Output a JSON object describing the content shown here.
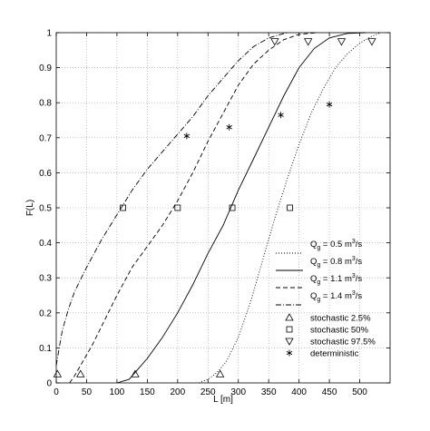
{
  "chart_data": {
    "type": "line",
    "xlabel": "L [m]",
    "ylabel": "F(L)",
    "xlim": [
      0,
      550
    ],
    "ylim": [
      0,
      1
    ],
    "xticks": [
      0,
      50,
      100,
      150,
      200,
      250,
      300,
      350,
      400,
      450,
      500
    ],
    "yticks": [
      0,
      0.1,
      0.2,
      0.3,
      0.4,
      0.5,
      0.6,
      0.7,
      0.8,
      0.9,
      1
    ],
    "grid": true,
    "legend_position": "bottom-right",
    "colors": {
      "lines": "#000000",
      "grid": "#9a9a9a",
      "background": "#ffffff"
    },
    "series": [
      {
        "name": "Q_g = 0.5 m³/s",
        "legend": {
          "base": "Q",
          "sub": "g",
          "mid": " = 0.5 m",
          "sup": "3",
          "tail": "/s"
        },
        "style": "dotted",
        "x": [
          235,
          250,
          265,
          280,
          300,
          320,
          340,
          360,
          380,
          400,
          420,
          440,
          460,
          480,
          500,
          520,
          535
        ],
        "y": [
          0,
          0.01,
          0.03,
          0.06,
          0.13,
          0.23,
          0.35,
          0.47,
          0.58,
          0.68,
          0.77,
          0.84,
          0.9,
          0.94,
          0.97,
          0.99,
          1
        ]
      },
      {
        "name": "Q_g = 0.8 m³/s",
        "legend": {
          "base": "Q",
          "sub": "g",
          "mid": " = 0.8 m",
          "sup": "3",
          "tail": "/s"
        },
        "style": "solid",
        "x": [
          100,
          110,
          120,
          130,
          150,
          175,
          200,
          225,
          250,
          275,
          300,
          325,
          350,
          375,
          400,
          425,
          450,
          480,
          510
        ],
        "y": [
          0,
          0.005,
          0.01,
          0.03,
          0.07,
          0.13,
          0.2,
          0.28,
          0.37,
          0.45,
          0.55,
          0.64,
          0.73,
          0.82,
          0.9,
          0.955,
          0.985,
          0.998,
          1
        ]
      },
      {
        "name": "Q_g = 1.1 m³/s",
        "legend": {
          "base": "Q",
          "sub": "g",
          "mid": " = 1.1 m",
          "sup": "3",
          "tail": "/s"
        },
        "style": "dashed",
        "x": [
          22,
          30,
          40,
          50,
          60,
          80,
          100,
          125,
          150,
          175,
          200,
          225,
          250,
          275,
          300,
          325,
          350,
          375,
          400,
          430
        ],
        "y": [
          0,
          0.02,
          0.05,
          0.08,
          0.11,
          0.18,
          0.25,
          0.33,
          0.39,
          0.45,
          0.52,
          0.6,
          0.69,
          0.77,
          0.85,
          0.91,
          0.95,
          0.98,
          0.995,
          1
        ]
      },
      {
        "name": "Q_g = 1.4 m³/s",
        "legend": {
          "base": "Q",
          "sub": "g",
          "mid": " = 1.4 m",
          "sup": "3",
          "tail": "/s"
        },
        "style": "dashdot",
        "x": [
          0,
          5,
          10,
          20,
          30,
          50,
          75,
          100,
          125,
          150,
          175,
          200,
          225,
          250,
          275,
          300,
          325,
          350,
          380
        ],
        "y": [
          0.05,
          0.1,
          0.15,
          0.21,
          0.26,
          0.33,
          0.41,
          0.48,
          0.55,
          0.61,
          0.66,
          0.71,
          0.76,
          0.82,
          0.87,
          0.92,
          0.96,
          0.985,
          1
        ]
      }
    ],
    "markers": [
      {
        "name": "stochastic 2.5%",
        "symbol": "triangle-up",
        "points": [
          [
            2,
            0.025
          ],
          [
            40,
            0.025
          ],
          [
            130,
            0.025
          ],
          [
            270,
            0.025
          ]
        ]
      },
      {
        "name": "stochastic 50%",
        "symbol": "square",
        "points": [
          [
            110,
            0.5
          ],
          [
            200,
            0.5
          ],
          [
            290,
            0.5
          ],
          [
            385,
            0.5
          ]
        ]
      },
      {
        "name": "stochastic 97.5%",
        "symbol": "triangle-down",
        "points": [
          [
            360,
            0.975
          ],
          [
            415,
            0.975
          ],
          [
            470,
            0.975
          ],
          [
            520,
            0.975
          ]
        ]
      },
      {
        "name": "deterministic",
        "symbol": "asterisk",
        "points": [
          [
            215,
            0.705
          ],
          [
            285,
            0.73
          ],
          [
            370,
            0.765
          ],
          [
            450,
            0.795
          ]
        ]
      }
    ]
  }
}
